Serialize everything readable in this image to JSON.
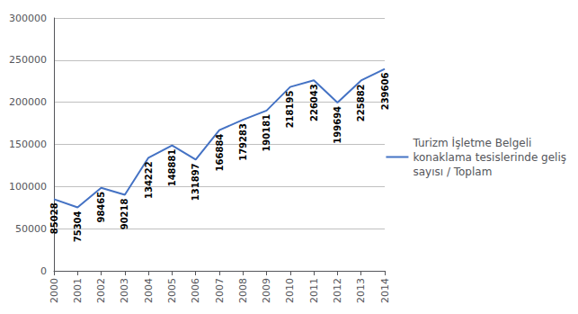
{
  "chart_data": {
    "type": "line",
    "categories": [
      "2000",
      "2001",
      "2002",
      "2003",
      "2004",
      "2005",
      "2006",
      "2007",
      "2008",
      "2009",
      "2010",
      "2011",
      "2012",
      "2013",
      "2014"
    ],
    "series": [
      {
        "name": "Turizm İşletme Belgeli\nkonaklama tesislerinde geliş\nsayısı / Toplam",
        "color": "#4472C4",
        "values": [
          85028,
          75304,
          98465,
          90218,
          134222,
          148881,
          131897,
          166884,
          179283,
          190181,
          218195,
          226043,
          199694,
          225882,
          239606
        ]
      }
    ],
    "ylim": [
      0,
      300000
    ],
    "yticks": [
      0,
      50000,
      100000,
      150000,
      200000,
      250000,
      300000
    ],
    "grid": true,
    "legend": "right",
    "data_labels": true
  }
}
